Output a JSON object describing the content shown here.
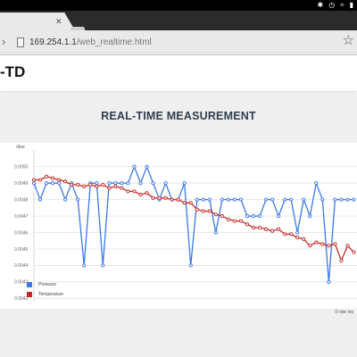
{
  "browser": {
    "url_host": "169.254.1.1",
    "url_path": "/web_realtime.html",
    "tab_close_icon": "close-icon"
  },
  "header": {
    "title": "-TD"
  },
  "chart_heading": "REAL-TIME MEASUREMENT",
  "footer_credit": "© nke ins",
  "chart_data": {
    "type": "line",
    "ylabel": "dbar",
    "yticks": [
      "0.0042",
      "0.0043",
      "0.0044",
      "0.0045",
      "0.0046",
      "0.0047",
      "0.0048",
      "0.0049",
      "0.0050"
    ],
    "ylim": [
      0.00418,
      0.00508
    ],
    "xlim": [
      0,
      51.5
    ],
    "grid": true,
    "legend_position": "bottom-left",
    "series": [
      {
        "name": "Pressure",
        "color": "#3b78e7",
        "x": [
          0,
          1,
          2,
          3,
          4,
          5,
          6,
          7,
          8,
          9,
          10,
          11,
          12,
          13,
          14,
          15,
          16,
          17,
          18,
          19,
          20,
          21,
          22,
          23,
          24,
          25,
          26,
          27,
          28,
          29,
          30,
          31,
          32,
          33,
          34,
          35,
          36,
          37,
          38,
          39,
          40,
          41,
          42,
          43,
          44,
          45,
          46,
          47,
          48,
          49,
          50,
          51
        ],
        "y": [
          0.0049,
          0.0048,
          0.0049,
          0.0049,
          0.0049,
          0.0048,
          0.0049,
          0.0048,
          0.0044,
          0.0049,
          0.0049,
          0.0044,
          0.0049,
          0.0049,
          0.0049,
          0.0049,
          0.005,
          0.0049,
          0.005,
          0.0049,
          0.0048,
          0.0049,
          0.0048,
          0.0048,
          0.0049,
          0.0044,
          0.0048,
          0.0048,
          0.0048,
          0.0046,
          0.0048,
          0.0048,
          0.0048,
          0.0048,
          0.0047,
          0.0047,
          0.0047,
          0.0048,
          0.0048,
          0.0047,
          0.0048,
          0.0048,
          0.0046,
          0.0048,
          0.0047,
          0.0049,
          0.0048,
          0.0043,
          0.0048,
          0.0048,
          0.0048,
          0.0048
        ]
      },
      {
        "name": "Temperature",
        "color": "#c62828",
        "x": [
          0,
          1,
          2,
          3,
          4,
          5,
          6,
          7,
          8,
          9,
          10,
          11,
          12,
          13,
          14,
          15,
          16,
          17,
          18,
          19,
          20,
          21,
          22,
          23,
          24,
          25,
          26,
          27,
          28,
          29,
          30,
          31,
          32,
          33,
          34,
          35,
          36,
          37,
          38,
          39,
          40,
          41,
          42,
          43,
          44,
          45,
          46,
          47,
          48,
          49,
          50,
          51
        ],
        "y": [
          0.00492,
          0.00492,
          0.00494,
          0.00493,
          0.00492,
          0.00491,
          0.00489,
          0.00489,
          0.00488,
          0.00489,
          0.00488,
          0.00489,
          0.00487,
          0.00488,
          0.00487,
          0.00485,
          0.00485,
          0.00483,
          0.00484,
          0.00481,
          0.00481,
          0.00481,
          0.0048,
          0.0048,
          0.00478,
          0.00478,
          0.00474,
          0.00473,
          0.00473,
          0.00471,
          0.0047,
          0.00468,
          0.00467,
          0.00467,
          0.00465,
          0.00463,
          0.00463,
          0.00462,
          0.00461,
          0.00462,
          0.00459,
          0.00459,
          0.00457,
          0.00456,
          0.00452,
          0.00454,
          0.00453,
          0.00452,
          0.00453,
          0.00443,
          0.00452,
          0.00448
        ]
      }
    ]
  }
}
